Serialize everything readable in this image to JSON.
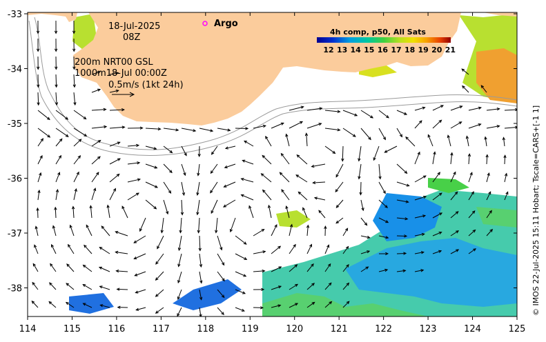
{
  "map": {
    "date": "18-Jul-2025",
    "hour": "08Z",
    "line1": "200m  NRT00 GSL",
    "line2": "1000m18-Jul 00:00Z",
    "line3": "0.5m/s (1kt 24h)",
    "argo_label": "Argo",
    "colorbar_title": "4h comp, p50, All Sats",
    "colorbar_ticks": [
      "12",
      "13",
      "14",
      "15",
      "16",
      "17",
      "18",
      "19",
      "20",
      "21"
    ],
    "x_ticks": [
      "114",
      "115",
      "116",
      "117",
      "118",
      "119",
      "120",
      "121",
      "122",
      "123",
      "124",
      "125"
    ],
    "y_ticks": [
      "-33",
      "-34",
      "-35",
      "-36",
      "-37",
      "-38"
    ],
    "credit": "© IMOS 22-Jul-2025 15:11 Hobart; Tscale=CARS+[-1 1]",
    "colors": {
      "land": "#fbcc9c",
      "argo": "#ff00ff",
      "contour": "#9a9a9a",
      "arrow": "#000000"
    }
  }
}
